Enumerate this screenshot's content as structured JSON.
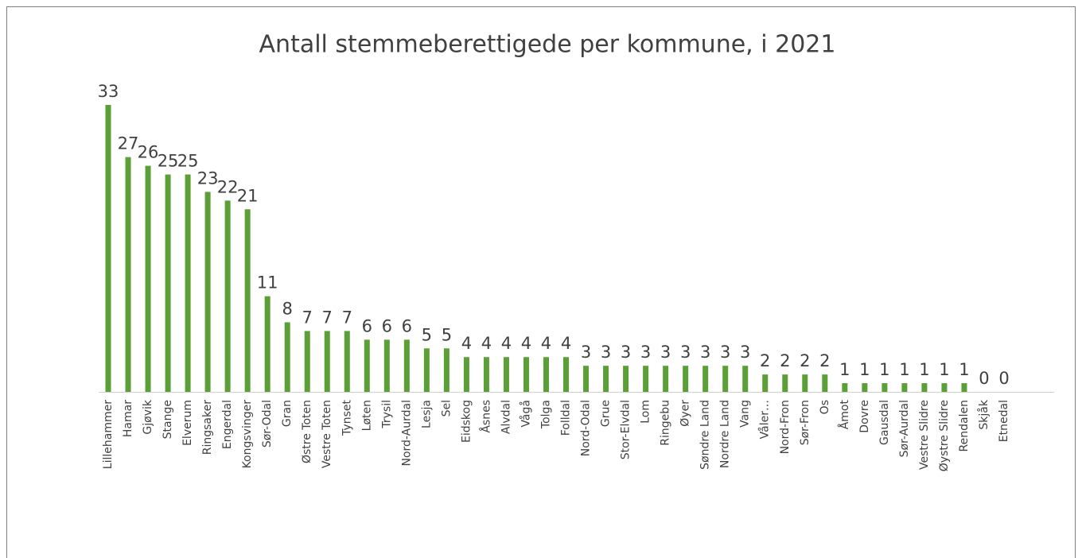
{
  "chart_data": {
    "type": "bar",
    "title": "Antall stemmeberettigede per kommune, i 2021",
    "categories": [
      "Lillehammer",
      "Hamar",
      "Gjøvik",
      "Stange",
      "Elverum",
      "Ringsaker",
      "Engerdal",
      "Kongsvinger",
      "Sør-Odal",
      "Gran",
      "Østre Toten",
      "Vestre Toten",
      "Tynset",
      "Løten",
      "Trysil",
      "Nord-Aurdal",
      "Lesja",
      "Sel",
      "Eidskog",
      "Åsnes",
      "Alvdal",
      "Vågå",
      "Tolga",
      "Folldal",
      "Nord-Odal",
      "Grue",
      "Stor-Elvdal",
      "Lom",
      "Ringebu",
      "Øyer",
      "Søndre Land",
      "Nordre Land",
      "Vang",
      "Våler…",
      "Nord-Fron",
      "Sør-Fron",
      "Os",
      "Åmot",
      "Dovre",
      "Gausdal",
      "Sør-Aurdal",
      "Vestre Slidre",
      "Øystre Slidre",
      "Rendalen",
      "Skjåk",
      "Etnedal"
    ],
    "values": [
      33,
      27,
      26,
      25,
      25,
      23,
      22,
      21,
      11,
      8,
      7,
      7,
      7,
      6,
      6,
      6,
      5,
      5,
      4,
      4,
      4,
      4,
      4,
      4,
      3,
      3,
      3,
      3,
      3,
      3,
      3,
      3,
      3,
      2,
      2,
      2,
      2,
      1,
      1,
      1,
      1,
      1,
      1,
      1,
      0,
      0
    ],
    "color": "#5b9f37"
  }
}
